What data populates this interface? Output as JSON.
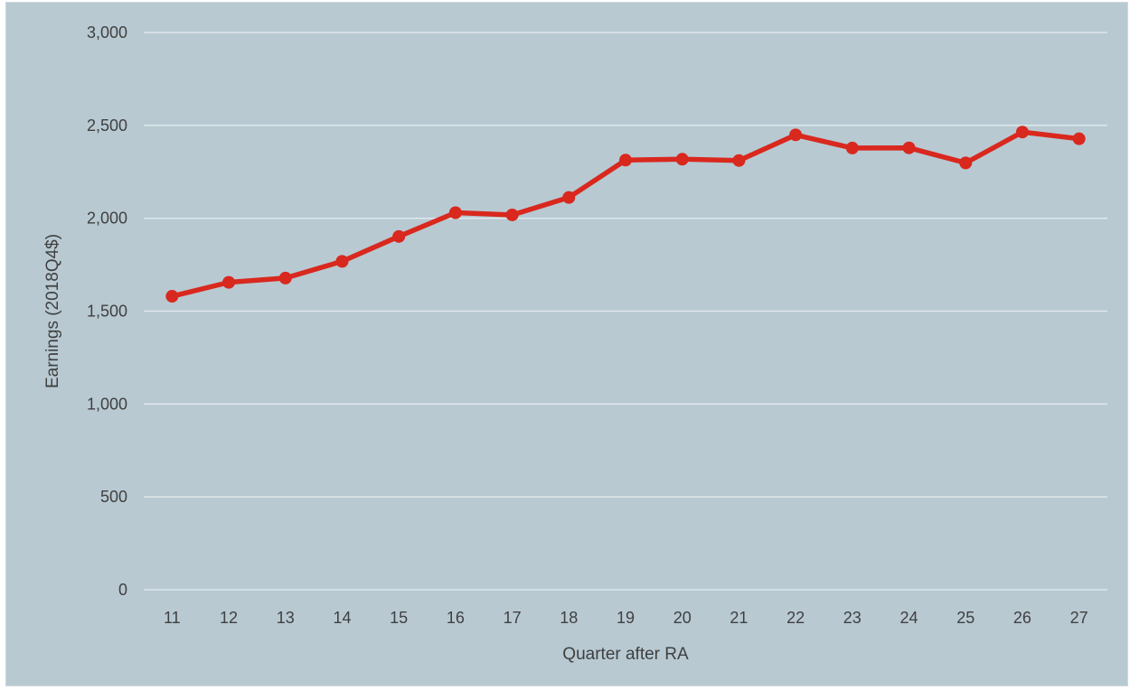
{
  "chart_data": {
    "type": "line",
    "title": "",
    "xlabel": "Quarter after RA",
    "ylabel": "Earnings (2018Q4$)",
    "ylim": [
      0,
      3000
    ],
    "yticks": [
      "0",
      "500",
      "1,000",
      "1,500",
      "2,000",
      "2,500",
      "3,000"
    ],
    "ytick_values": [
      0,
      500,
      1000,
      1500,
      2000,
      2500,
      3000
    ],
    "categories": [
      "11",
      "12",
      "13",
      "14",
      "15",
      "16",
      "17",
      "18",
      "19",
      "20",
      "21",
      "22",
      "23",
      "24",
      "25",
      "26",
      "27"
    ],
    "series": [
      {
        "values": [
          1580,
          1655,
          1678,
          1768,
          1902,
          2030,
          2018,
          2112,
          2313,
          2318,
          2311,
          2449,
          2378,
          2379,
          2298,
          2464,
          2428
        ]
      }
    ],
    "grid": true,
    "legend": "none",
    "colors": {
      "background": "#b8c9d2",
      "line": "#d9281e",
      "grid": "#e3eaee",
      "text": "#404040"
    }
  }
}
